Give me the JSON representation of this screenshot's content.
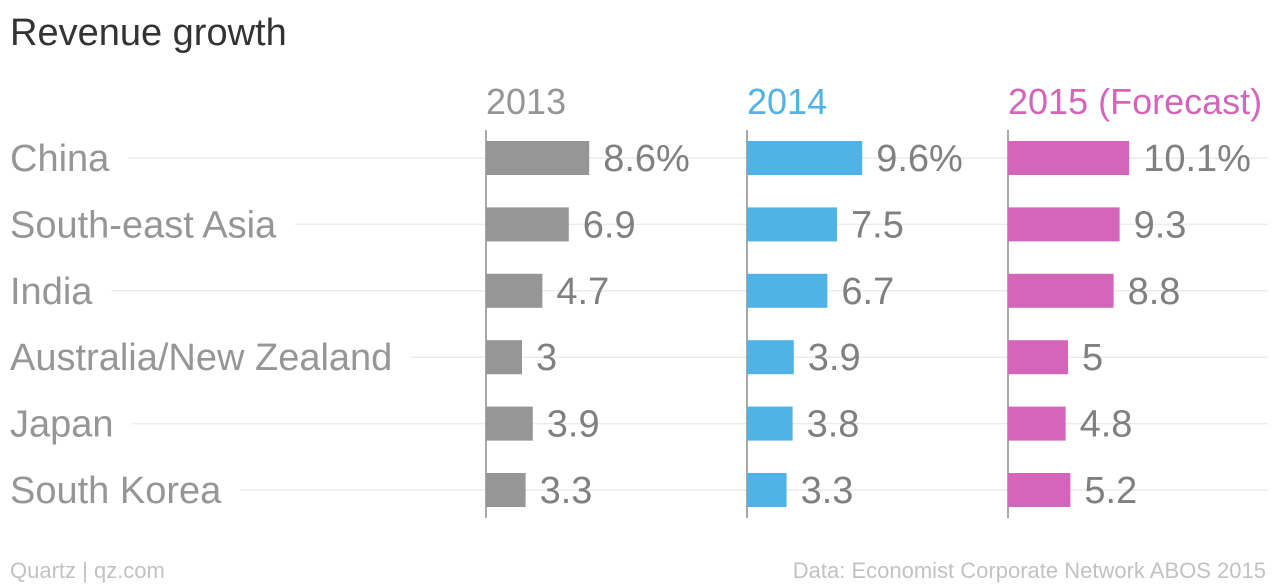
{
  "chart_data": {
    "type": "bar",
    "orientation": "horizontal",
    "title": "Revenue growth",
    "categories": [
      "China",
      "South-east Asia",
      "India",
      "Australia/New Zealand",
      "Japan",
      "South Korea"
    ],
    "series": [
      {
        "name": "2013",
        "color": "#969696",
        "values": [
          8.6,
          6.9,
          4.7,
          3,
          3.9,
          3.3
        ],
        "labels": [
          "8.6%",
          "6.9",
          "4.7",
          "3",
          "3.9",
          "3.3"
        ]
      },
      {
        "name": "2014",
        "color": "#51b2e5",
        "values": [
          9.6,
          7.5,
          6.7,
          3.9,
          3.8,
          3.3
        ],
        "labels": [
          "9.6%",
          "7.5",
          "6.7",
          "3.9",
          "3.8",
          "3.3"
        ]
      },
      {
        "name": "2015 (Forecast)",
        "color": "#d365ba",
        "values": [
          10.1,
          9.3,
          8.8,
          5,
          4.8,
          5.2
        ],
        "labels": [
          "10.1%",
          "9.3",
          "8.8",
          "5",
          "4.8",
          "5.2"
        ]
      }
    ],
    "xlim": [
      0,
      10.1
    ],
    "grid": true
  },
  "footer": {
    "source_left": "Quartz | qz.com",
    "source_right": "Data: Economist Corporate Network ABOS 2015"
  },
  "colors": {
    "category_label": "#969696",
    "value_label": "#808080",
    "gridline": "#ececec",
    "axis_line": "#8c8c8c"
  }
}
